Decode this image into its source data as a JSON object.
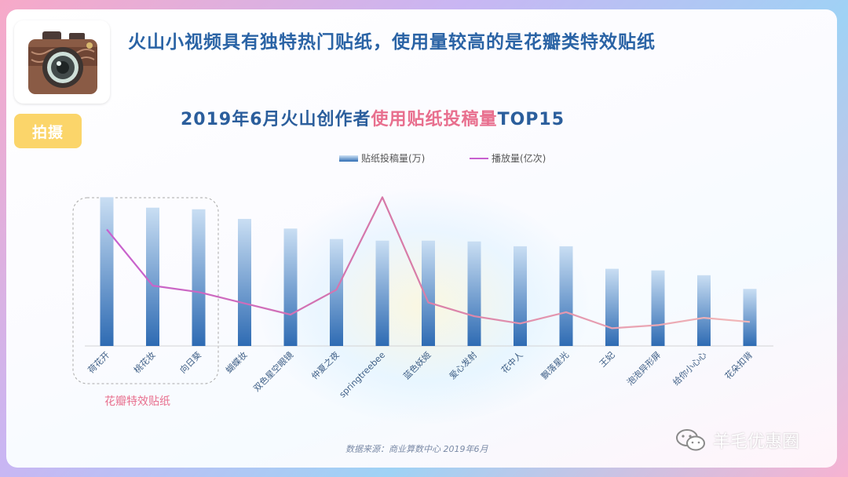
{
  "headline": "火山小视频具有独特热门贴纸，使用量较高的是花瓣类特效贴纸",
  "tag_label": "拍摄",
  "logo_icon": "camera-icon",
  "chart_title": {
    "prefix": "2019年6月火山创作者",
    "highlight": "使用贴纸投稿量",
    "suffix": "TOP15"
  },
  "legend": {
    "bars": "贴纸投稿量(万)",
    "line": "播放量(亿次)"
  },
  "group_label": "花瓣特效贴纸",
  "source": "数据来源：商业算数中心   2019年6月",
  "watermark": "羊毛优惠圈",
  "colors": {
    "title": "#2a63a5",
    "highlight": "#e86f8e",
    "bar_top": "#c9def3",
    "bar_bottom": "#2e6bb3",
    "line_start": "#c760cf",
    "line_end": "#f2b8b8",
    "tag": "#fbd56a"
  },
  "chart_data": {
    "type": "bar+line",
    "title": "2019年6月火山创作者使用贴纸投稿量TOP15",
    "categories": [
      "荷花开",
      "桃花妆",
      "向日葵",
      "蝴蝶妆",
      "双色星空眼镜",
      "仲夏之夜",
      "springtreebee",
      "蓝色妖姬",
      "爱心发射",
      "花中人",
      "飘落星光",
      "王妃",
      "泡泡异形屏",
      "给你小心心",
      "花朵扣背"
    ],
    "series": [
      {
        "name": "贴纸投稿量(万)",
        "kind": "bar",
        "values": [
          185,
          172,
          170,
          158,
          146,
          133,
          131,
          131,
          130,
          124,
          124,
          96,
          94,
          88,
          71
        ]
      },
      {
        "name": "播放量(亿次)",
        "kind": "line",
        "values": [
          145,
          75,
          67,
          53,
          39,
          70,
          185,
          54,
          37,
          28,
          42,
          22,
          26,
          35,
          30
        ]
      }
    ],
    "bar_ylim": [
      0,
      200
    ],
    "line_ylim": [
      0,
      200
    ],
    "grid": false,
    "legend_position": "top-center",
    "annotations": [
      {
        "text": "花瓣特效贴纸",
        "categories": [
          "荷花开",
          "桃花妆",
          "向日葵"
        ]
      }
    ]
  }
}
